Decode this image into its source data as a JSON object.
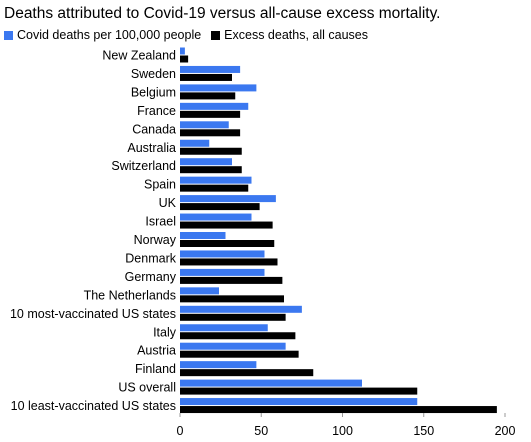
{
  "chart_data": {
    "type": "bar",
    "orientation": "horizontal",
    "title": "Deaths attributed to Covid-19 versus all-cause excess mortality.",
    "categories": [
      "New Zealand",
      "Sweden",
      "Belgium",
      "France",
      "Canada",
      "Australia",
      "Switzerland",
      "Spain",
      "UK",
      "Israel",
      "Norway",
      "Denmark",
      "Germany",
      "The Netherlands",
      "10 most-vaccinated US states",
      "Italy",
      "Austria",
      "Finland",
      "US overall",
      "10 least-vaccinated US states"
    ],
    "series": [
      {
        "name": "Covid deaths per 100,000 people",
        "color": "#3b78f0",
        "values": [
          3,
          37,
          47,
          42,
          30,
          18,
          32,
          44,
          59,
          44,
          28,
          52,
          52,
          24,
          75,
          54,
          65,
          47,
          112,
          146
        ]
      },
      {
        "name": "Excess deaths, all causes",
        "color": "#000000",
        "values": [
          5,
          32,
          34,
          37,
          37,
          38,
          38,
          42,
          49,
          57,
          58,
          60,
          63,
          64,
          65,
          71,
          73,
          82,
          146,
          195
        ]
      }
    ],
    "xlim": [
      0,
      200
    ],
    "xticks": [
      "0",
      "50",
      "100",
      "150",
      "200"
    ],
    "legend_position": "top-left",
    "grid": false
  }
}
